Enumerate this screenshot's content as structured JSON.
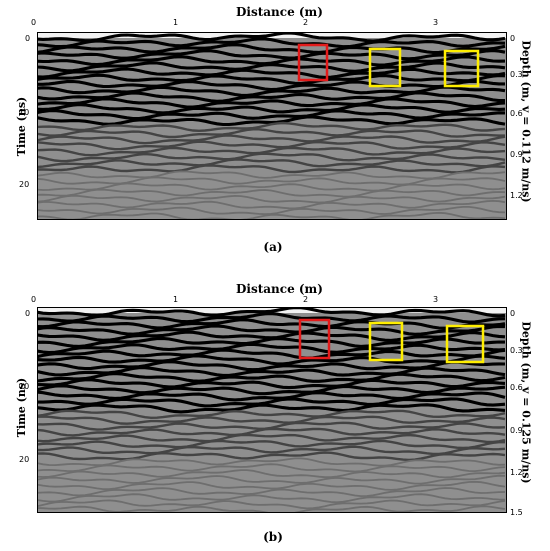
{
  "panels": [
    {
      "x_label": "Distance (m)",
      "x_ticks": [
        "0",
        "1",
        "2",
        "3"
      ],
      "y_left_label": "Time (ns)",
      "y_left_ticks": [
        "0",
        "10",
        "20"
      ],
      "y_right_label": "Depth (m, v = 0.112 m/ns)",
      "y_right_ticks": [
        "0",
        "0.3",
        "0.6",
        "0.9",
        "1.2"
      ],
      "caption": "(a)",
      "boxes": [
        {
          "color": "#e31b1b",
          "label": "red"
        },
        {
          "color": "#ffee00",
          "label": "yellow"
        },
        {
          "color": "#ffee00",
          "label": "yellow"
        }
      ]
    },
    {
      "x_label": "Distance (m)",
      "x_ticks": [
        "0",
        "1",
        "2",
        "3"
      ],
      "y_left_label": "Time (ns)",
      "y_left_ticks": [
        "0",
        "10",
        "20"
      ],
      "y_right_label": "Depth (m, v = 0.125 m/ns)",
      "y_right_ticks": [
        "0",
        "0.3",
        "0.6",
        "0.9",
        "1.2",
        "1.5"
      ],
      "caption": "(b)",
      "boxes": [
        {
          "color": "#e31b1b",
          "label": "red"
        },
        {
          "color": "#ffee00",
          "label": "yellow"
        },
        {
          "color": "#ffee00",
          "label": "yellow"
        }
      ]
    }
  ]
}
